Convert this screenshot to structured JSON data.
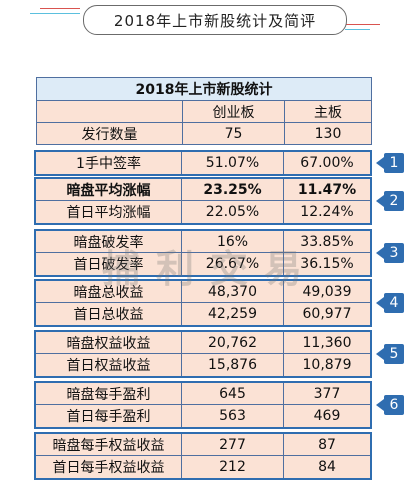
{
  "header": {
    "title": "2018年上市新股统计及简评"
  },
  "table": {
    "title": "2018年上市新股统计",
    "columns": [
      "",
      "创业板",
      "主板"
    ],
    "rows": [
      {
        "label": "发行数量",
        "chinext": "75",
        "main": "130"
      },
      {
        "label": "1手中签率",
        "chinext": "51.07%",
        "main": "67.00%"
      },
      {
        "label": "暗盘平均涨幅",
        "chinext": "23.25%",
        "main": "11.47%"
      },
      {
        "label": "首日平均涨幅",
        "chinext": "22.05%",
        "main": "12.24%"
      },
      {
        "label": "暗盘破发率",
        "chinext": "16%",
        "main": "33.85%"
      },
      {
        "label": "首日破发率",
        "chinext": "26.67%",
        "main": "36.15%"
      },
      {
        "label": "暗盘总收益",
        "chinext": "48,370",
        "main": "49,039"
      },
      {
        "label": "首日总收益",
        "chinext": "42,259",
        "main": "60,977"
      },
      {
        "label": "暗盘权益收益",
        "chinext": "20,762",
        "main": "11,360"
      },
      {
        "label": "首日权益收益",
        "chinext": "15,876",
        "main": "10,879"
      },
      {
        "label": "暗盘每手盈利",
        "chinext": "645",
        "main": "377"
      },
      {
        "label": "首日每手盈利",
        "chinext": "563",
        "main": "469"
      },
      {
        "label": "暗盘每手权益收益",
        "chinext": "277",
        "main": "87"
      },
      {
        "label": "首日每手权益收益",
        "chinext": "212",
        "main": "84"
      }
    ]
  },
  "badges": [
    "1",
    "2",
    "3",
    "4",
    "5",
    "6"
  ],
  "watermark": "捕利交易",
  "colors": {
    "accent": "#2f6db0",
    "header_bg": "#ddebf7",
    "cell_bg": "#fbe2d5"
  }
}
